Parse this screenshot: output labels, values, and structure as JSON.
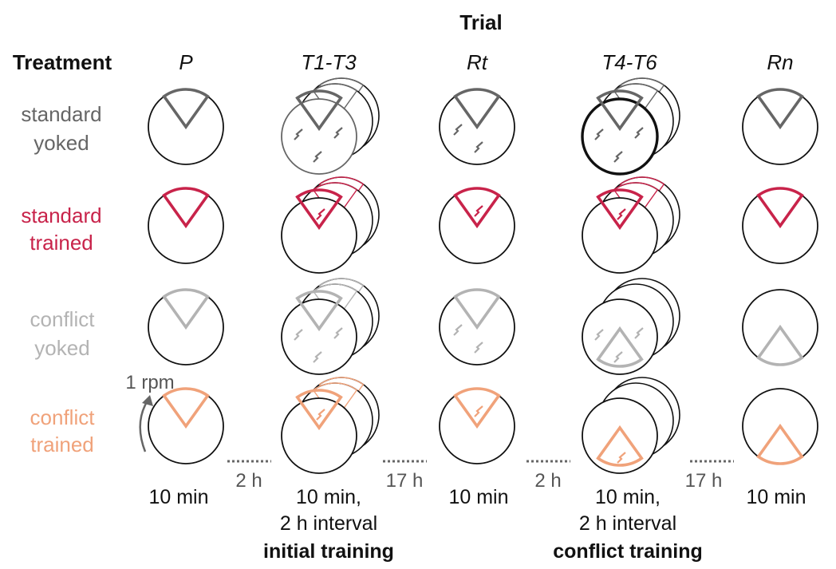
{
  "header": {
    "trial": "Trial",
    "treatment": "Treatment"
  },
  "trials": [
    {
      "label": "P",
      "duration": "10 min",
      "interval": ""
    },
    {
      "label": "T1-T3",
      "duration": "10 min,",
      "interval": "2 h interval"
    },
    {
      "label": "Rt",
      "duration": "10 min",
      "interval": ""
    },
    {
      "label": "T4-T6",
      "duration": "10 min,",
      "interval": "2 h interval"
    },
    {
      "label": "Rn",
      "duration": "10 min",
      "interval": ""
    }
  ],
  "gaps": [
    "2 h",
    "17 h",
    "2 h",
    "17 h"
  ],
  "phases": {
    "initial": "initial training",
    "conflict": "conflict training"
  },
  "rotation": "1 rpm",
  "treatments": [
    {
      "line1": "standard",
      "line2": "yoked",
      "color": "#666666"
    },
    {
      "line1": "standard",
      "line2": "trained",
      "color": "#c8234a"
    },
    {
      "line1": "conflict",
      "line2": "yoked",
      "color": "#b3b3b3"
    },
    {
      "line1": "conflict",
      "line2": "trained",
      "color": "#f0a27a"
    }
  ]
}
